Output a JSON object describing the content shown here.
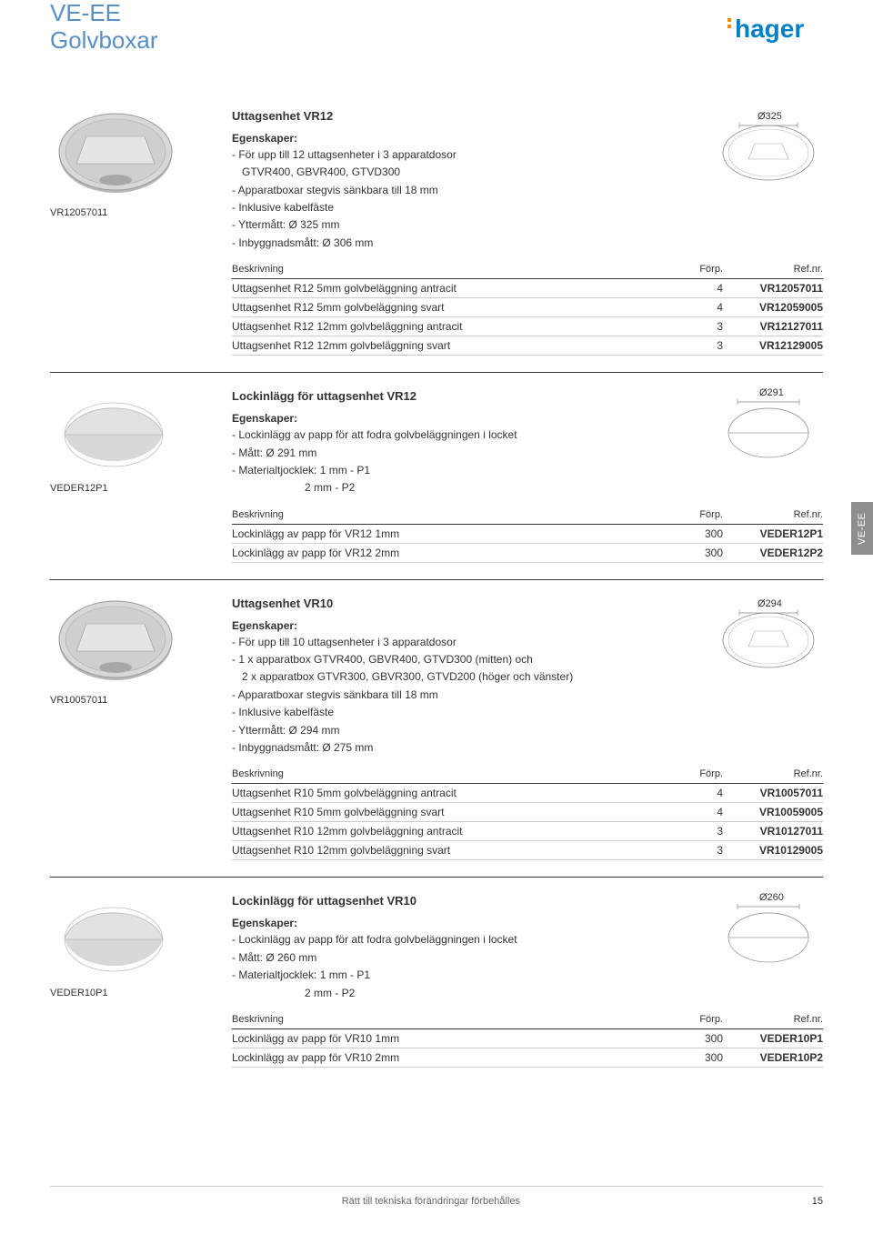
{
  "header": {
    "line1": "VE-EE",
    "line2": "Golvboxar",
    "logo_text": "hager",
    "logo_color": "#0082c8",
    "logo_orange": "#f18a00"
  },
  "side_tab": "VE-EE",
  "sections": [
    {
      "id": "s1",
      "img_type": "round",
      "img_label": "VR12057011",
      "title": "Uttagsenhet VR12",
      "subtitle": "Egenskaper:",
      "props": [
        "- För upp till 12 uttagsenheter i 3 apparatdosor",
        "  GTVR400, GBVR400, GTVD300",
        "- Apparatboxar stegvis sänkbara till 18 mm",
        "- Inklusive kabelfäste",
        "- Yttermått: Ø 325 mm",
        "- Inbyggnadsmått: Ø 306 mm"
      ],
      "diagram": {
        "dim": "Ø325"
      },
      "table": {
        "headers": [
          "Beskrivning",
          "Förp.",
          "Ref.nr."
        ],
        "rows": [
          [
            "Uttagsenhet R12 5mm golvbeläggning antracit",
            "4",
            "VR12057011"
          ],
          [
            "Uttagsenhet R12 5mm golvbeläggning svart",
            "4",
            "VR12059005"
          ],
          [
            "Uttagsenhet R12 12mm golvbeläggning antracit",
            "3",
            "VR12127011"
          ],
          [
            "Uttagsenhet R12 12mm golvbeläggning svart",
            "3",
            "VR12129005"
          ]
        ]
      }
    },
    {
      "id": "s2",
      "img_type": "flat",
      "img_label": "VEDER12P1",
      "title": "Lockinlägg för uttagsenhet VR12",
      "subtitle": "Egenskaper:",
      "props": [
        "- Lockinlägg av papp för att fodra golvbeläggningen i locket",
        "- Mått: Ø 291 mm",
        "- Materialtjocklek: 1 mm - P1"
      ],
      "props_extra": "2 mm - P2",
      "diagram": {
        "dim": "Ø291"
      },
      "table": {
        "headers": [
          "Beskrivning",
          "Förp.",
          "Ref.nr."
        ],
        "rows": [
          [
            "Lockinlägg av papp för VR12 1mm",
            "300",
            "VEDER12P1"
          ],
          [
            "Lockinlägg av papp för VR12 2mm",
            "300",
            "VEDER12P2"
          ]
        ]
      }
    },
    {
      "id": "s3",
      "img_type": "round",
      "img_label": "VR10057011",
      "title": "Uttagsenhet VR10",
      "subtitle": "Egenskaper:",
      "props": [
        "- För upp till 10 uttagsenheter i 3 apparatdosor",
        "- 1 x apparatbox GTVR400, GBVR400, GTVD300 (mitten) och",
        "  2 x apparatbox GTVR300, GBVR300, GTVD200 (höger och vänster)",
        "- Apparatboxar stegvis sänkbara till 18 mm",
        "- Inklusive kabelfäste",
        "- Yttermått: Ø 294 mm",
        "- Inbyggnadsmått: Ø 275 mm"
      ],
      "diagram": {
        "dim": "Ø294"
      },
      "table": {
        "headers": [
          "Beskrivning",
          "Förp.",
          "Ref.nr."
        ],
        "rows": [
          [
            "Uttagsenhet R10 5mm golvbeläggning antracit",
            "4",
            "VR10057011"
          ],
          [
            "Uttagsenhet R10 5mm golvbeläggning svart",
            "4",
            "VR10059005"
          ],
          [
            "Uttagsenhet R10 12mm golvbeläggning antracit",
            "3",
            "VR10127011"
          ],
          [
            "Uttagsenhet R10 12mm golvbeläggning svart",
            "3",
            "VR10129005"
          ]
        ]
      }
    },
    {
      "id": "s4",
      "img_type": "flat",
      "img_label": "VEDER10P1",
      "title": "Lockinlägg för uttagsenhet VR10",
      "subtitle": "Egenskaper:",
      "props": [
        "- Lockinlägg av papp för att fodra golvbeläggningen i locket",
        "- Mått: Ø 260 mm",
        "- Materialtjocklek: 1 mm - P1"
      ],
      "props_extra": "2 mm - P2",
      "diagram": {
        "dim": "Ø260"
      },
      "table": {
        "headers": [
          "Beskrivning",
          "Förp.",
          "Ref.nr."
        ],
        "rows": [
          [
            "Lockinlägg av papp för VR10 1mm",
            "300",
            "VEDER10P1"
          ],
          [
            "Lockinlägg av papp för VR10 2mm",
            "300",
            "VEDER10P2"
          ]
        ]
      }
    }
  ],
  "footer": {
    "text": "Rätt till tekniska förändringar förbehålles",
    "page": "15"
  },
  "colors": {
    "title_blue": "#5a8fc4",
    "text": "#333333",
    "border_dark": "#333333",
    "border_light": "#cccccc",
    "tab_bg": "#8e8e8e",
    "img_gray": "#cfcfcf",
    "img_gray_light": "#e5e5e5"
  }
}
